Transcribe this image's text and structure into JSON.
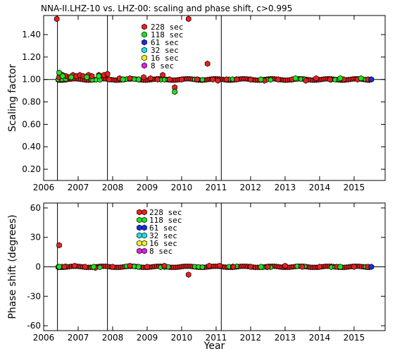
{
  "chart_data": [
    {
      "type": "scatter",
      "title": "NNA-II.LHZ-10 vs. LHZ-00: scaling and phase shift, c>0.995",
      "xlabel": "",
      "ylabel": "Scaling factor",
      "xlim": [
        2006.0,
        2015.9
      ],
      "ylim": [
        0.1,
        1.57
      ],
      "yticks": [
        0.2,
        0.4,
        0.6,
        0.8,
        1.0,
        1.2,
        1.4
      ],
      "ytick_labels": [
        "0.20",
        "0.40",
        "0.60",
        "0.80",
        "1.00",
        "1.20",
        "1.40"
      ],
      "xticks": [
        2006,
        2007,
        2008,
        2009,
        2010,
        2011,
        2012,
        2013,
        2014,
        2015
      ],
      "xtick_labels": [
        "2006",
        "2007",
        "2008",
        "2009",
        "2010",
        "2011",
        "2012",
        "2013",
        "2014",
        "2015"
      ],
      "reference_line": 1.0,
      "event_lines": [
        2006.4,
        2007.85,
        2011.15
      ],
      "legend_position": "top-center",
      "series": [
        {
          "name": "228  sec",
          "color": "#e8201f",
          "baseline": 1.0,
          "points": [
            [
              2006.38,
              1.54
            ],
            [
              2006.45,
              1.02
            ],
            [
              2006.55,
              1.04
            ],
            [
              2006.65,
              1.03
            ],
            [
              2006.75,
              1.02
            ],
            [
              2006.85,
              1.04
            ],
            [
              2006.95,
              1.03
            ],
            [
              2007.05,
              1.04
            ],
            [
              2007.15,
              1.03
            ],
            [
              2007.3,
              1.04
            ],
            [
              2007.4,
              1.03
            ],
            [
              2007.6,
              1.04
            ],
            [
              2007.75,
              1.04
            ],
            [
              2007.85,
              1.05
            ],
            [
              2007.9,
              1.0
            ],
            [
              2008.2,
              1.01
            ],
            [
              2008.5,
              1.01
            ],
            [
              2008.9,
              1.02
            ],
            [
              2009.1,
              1.01
            ],
            [
              2009.3,
              1.0
            ],
            [
              2009.45,
              1.04
            ],
            [
              2009.65,
              1.0
            ],
            [
              2009.8,
              0.93
            ],
            [
              2010.0,
              1.0
            ],
            [
              2010.2,
              1.54
            ],
            [
              2010.45,
              1.0
            ],
            [
              2010.75,
              1.14
            ],
            [
              2010.9,
              1.0
            ],
            [
              2011.05,
              0.99
            ],
            [
              2011.3,
              1.0
            ],
            [
              2011.6,
              1.0
            ],
            [
              2012.0,
              1.0
            ],
            [
              2012.4,
              0.99
            ],
            [
              2012.8,
              1.0
            ],
            [
              2013.2,
              1.0
            ],
            [
              2013.6,
              0.99
            ],
            [
              2013.9,
              1.01
            ],
            [
              2014.3,
              1.0
            ],
            [
              2014.7,
              1.0
            ],
            [
              2015.1,
              1.0
            ],
            [
              2015.4,
              1.0
            ]
          ]
        },
        {
          "name": "118  sec",
          "color": "#20e020",
          "baseline": 1.0,
          "points": [
            [
              2006.45,
              1.06
            ],
            [
              2006.55,
              1.03
            ],
            [
              2006.8,
              1.02
            ],
            [
              2007.25,
              1.02
            ],
            [
              2007.6,
              1.03
            ],
            [
              2008.3,
              1.0
            ],
            [
              2008.75,
              1.0
            ],
            [
              2009.8,
              0.89
            ],
            [
              2012.3,
              1.0
            ],
            [
              2013.3,
              1.01
            ],
            [
              2014.6,
              1.01
            ],
            [
              2015.2,
              1.01
            ]
          ]
        },
        {
          "name": "61  sec",
          "color": "#1030e0",
          "baseline": 1.0,
          "points": [
            [
              2015.5,
              1.0
            ]
          ]
        },
        {
          "name": "32  sec",
          "color": "#20e0e0",
          "points": []
        },
        {
          "name": "16  sec",
          "color": "#f0f020",
          "points": []
        },
        {
          "name": "8  sec",
          "color": "#e020e0",
          "points": []
        }
      ]
    },
    {
      "type": "scatter",
      "title": "",
      "xlabel": "Year",
      "ylabel": "Phase shift (degrees)",
      "xlim": [
        2006.0,
        2015.9
      ],
      "ylim": [
        -65,
        65
      ],
      "yticks": [
        -60,
        -30,
        0,
        30,
        60
      ],
      "ytick_labels": [
        "-60",
        "-30",
        "0",
        "30",
        "60"
      ],
      "xticks": [
        2006,
        2007,
        2008,
        2009,
        2010,
        2011,
        2012,
        2013,
        2014,
        2015
      ],
      "xtick_labels": [
        "2006",
        "2007",
        "2008",
        "2009",
        "2010",
        "2011",
        "2012",
        "2013",
        "2014",
        "2015"
      ],
      "reference_line": 0,
      "event_lines": [
        2006.4,
        2007.85,
        2011.15
      ],
      "legend_position": "top-center",
      "series": [
        {
          "name": "228  sec",
          "color": "#e8201f",
          "baseline": 0,
          "points": [
            [
              2006.45,
              22
            ],
            [
              2006.6,
              0
            ],
            [
              2006.9,
              1
            ],
            [
              2007.2,
              0
            ],
            [
              2007.5,
              -1
            ],
            [
              2008.0,
              0
            ],
            [
              2008.5,
              1
            ],
            [
              2009.0,
              0
            ],
            [
              2009.5,
              1
            ],
            [
              2010.2,
              -8
            ],
            [
              2010.8,
              1
            ],
            [
              2011.1,
              1
            ],
            [
              2011.5,
              0
            ],
            [
              2012.0,
              0
            ],
            [
              2012.5,
              0
            ],
            [
              2013.0,
              1
            ],
            [
              2013.5,
              0
            ],
            [
              2014.0,
              0
            ],
            [
              2014.5,
              0
            ],
            [
              2015.0,
              0
            ],
            [
              2015.4,
              0
            ]
          ]
        },
        {
          "name": "118  sec",
          "color": "#20e020",
          "baseline": 0,
          "points": [
            [
              2006.45,
              0
            ],
            [
              2007.45,
              0
            ],
            [
              2008.75,
              0
            ],
            [
              2012.3,
              0
            ],
            [
              2014.6,
              0
            ]
          ]
        },
        {
          "name": "61  sec",
          "color": "#1030e0",
          "baseline": 0,
          "points": [
            [
              2015.5,
              0
            ]
          ]
        },
        {
          "name": "32  sec",
          "color": "#20e0e0",
          "points": []
        },
        {
          "name": "16  sec",
          "color": "#f0f020",
          "points": []
        },
        {
          "name": "8  sec",
          "color": "#e020e0",
          "points": []
        }
      ]
    }
  ]
}
